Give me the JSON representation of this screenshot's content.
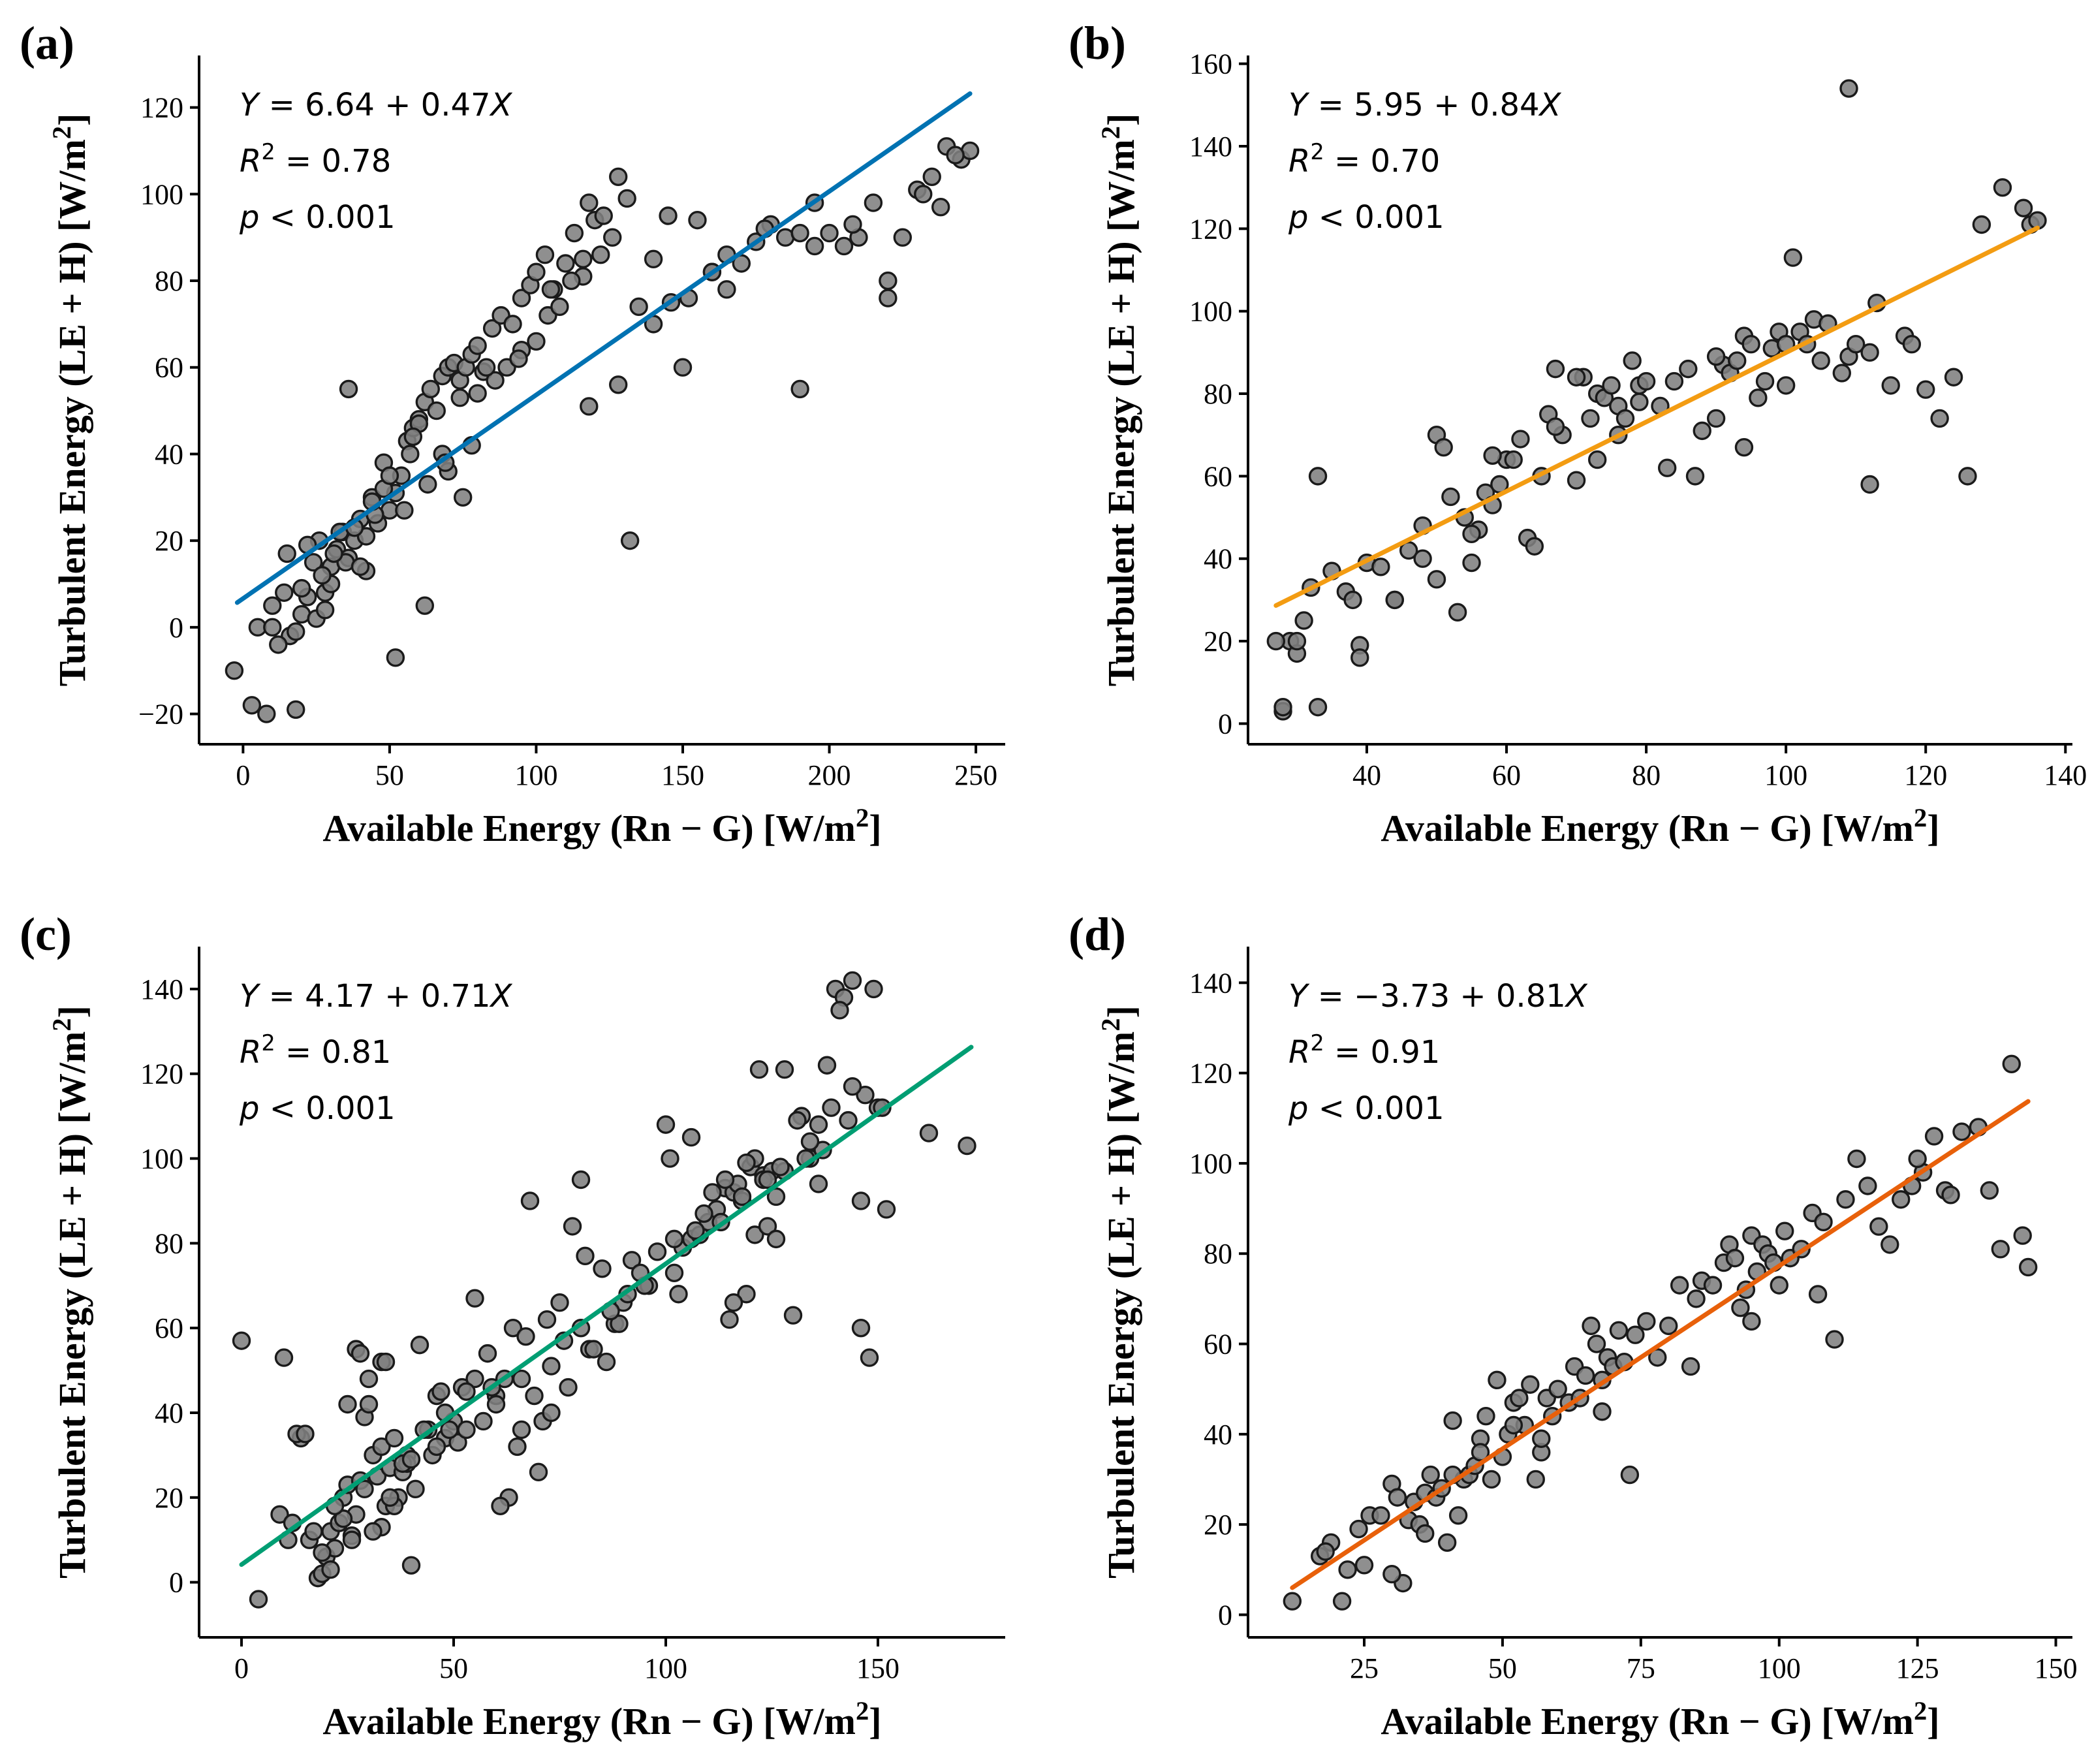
{
  "chart_data": [
    {
      "type": "scatter",
      "panel": "(a)",
      "xlabel": "Available Energy (Rn − G) [W/m2]",
      "ylabel": "Turbulent Energy (LE + H) [W/m2]",
      "xlim": [
        -15,
        260
      ],
      "ylim": [
        -27,
        132
      ],
      "xticks": [
        0,
        50,
        100,
        150,
        200,
        250
      ],
      "yticks": [
        -20,
        0,
        20,
        40,
        60,
        80,
        100,
        120
      ],
      "annotations": [
        "Y = 6.64 + 0.47X",
        "R2 = 0.78",
        "p < 0.001"
      ],
      "fit": {
        "intercept": 6.64,
        "slope": 0.47,
        "x_range": [
          -2,
          248
        ],
        "color": "#0072b2"
      },
      "points": {
        "x": [
          -3,
          3,
          8,
          10,
          14,
          16,
          18,
          20,
          22,
          24,
          26,
          28,
          30,
          32,
          34,
          36,
          38,
          40,
          42,
          44,
          46,
          48,
          50,
          52,
          54,
          56,
          58,
          60,
          62,
          64,
          66,
          68,
          70,
          72,
          74,
          76,
          78,
          80,
          82,
          85,
          88,
          92,
          95,
          98,
          100,
          103,
          106,
          110,
          113,
          116,
          118,
          120,
          123,
          126,
          128,
          131,
          135,
          140,
          145,
          150,
          155,
          160,
          165,
          170,
          175,
          180,
          185,
          190,
          195,
          200,
          205,
          210,
          215,
          220,
          225,
          230,
          235,
          240,
          245,
          248,
          5,
          12,
          18,
          25,
          30,
          35,
          42,
          48,
          55,
          62,
          70,
          78,
          86,
          95,
          104,
          112,
          122,
          132,
          146,
          160,
          190,
          220,
          60,
          75,
          52,
          40,
          36,
          22,
          15,
          10,
          28,
          33,
          45,
          58,
          68,
          80,
          90,
          100,
          108,
          118,
          128,
          140,
          152,
          165,
          178,
          195,
          208,
          232,
          238,
          243,
          20,
          27,
          31,
          38,
          44,
          50,
          57,
          63,
          69,
          74,
          83,
          94,
          105,
          116
        ],
        "y": [
          -10,
          -18,
          -20,
          5,
          8,
          -2,
          -19,
          3,
          7,
          15,
          20,
          8,
          14,
          18,
          22,
          16,
          20,
          25,
          13,
          30,
          24,
          38,
          27,
          31,
          35,
          43,
          46,
          48,
          52,
          55,
          50,
          58,
          60,
          61,
          57,
          60,
          63,
          65,
          59,
          69,
          72,
          70,
          76,
          79,
          82,
          86,
          78,
          84,
          91,
          81,
          98,
          94,
          95,
          90,
          104,
          99,
          74,
          85,
          95,
          60,
          94,
          82,
          78,
          84,
          89,
          93,
          90,
          55,
          98,
          91,
          88,
          90,
          98,
          76,
          90,
          101,
          104,
          111,
          108,
          110,
          0,
          -4,
          -1,
          2,
          10,
          15,
          21,
          32,
          27,
          5,
          36,
          42,
          57,
          64,
          72,
          80,
          86,
          20,
          75,
          82,
          91,
          80,
          47,
          30,
          -7,
          14,
          55,
          19,
          17,
          0,
          4,
          22,
          26,
          44,
          40,
          54,
          60,
          66,
          74,
          51,
          56,
          70,
          76,
          86,
          92,
          88,
          93,
          100,
          97,
          109,
          9,
          12,
          17,
          23,
          29,
          35,
          40,
          33,
          38,
          53,
          60,
          62,
          78,
          85
        ]
      }
    },
    {
      "type": "scatter",
      "panel": "(b)",
      "xlabel": "Available Energy (Rn − G) [W/m2]",
      "ylabel": "Turbulent Energy (LE + H) [W/m2]",
      "xlim": [
        23,
        141
      ],
      "ylim": [
        -5,
        162
      ],
      "xticks": [
        40,
        60,
        80,
        100,
        120,
        140
      ],
      "yticks": [
        0,
        20,
        40,
        60,
        80,
        100,
        120,
        140,
        160
      ],
      "annotations": [
        "Y = 5.95 + 0.84X",
        "R2 = 0.70",
        "p < 0.001"
      ],
      "fit": {
        "intercept": 5.95,
        "slope": 0.84,
        "x_range": [
          27,
          136
        ],
        "color": "#f39c12"
      },
      "points": {
        "x": [
          28,
          29,
          30,
          31,
          32,
          33,
          35,
          37,
          39,
          40,
          42,
          44,
          46,
          48,
          50,
          51,
          52,
          54,
          55,
          56,
          57,
          58,
          59,
          60,
          62,
          63,
          65,
          66,
          67,
          68,
          70,
          71,
          72,
          73,
          74,
          75,
          76,
          77,
          78,
          79,
          80,
          82,
          84,
          86,
          88,
          90,
          91,
          92,
          93,
          94,
          95,
          96,
          98,
          99,
          100,
          101,
          102,
          104,
          105,
          108,
          109,
          110,
          112,
          113,
          115,
          117,
          118,
          120,
          122,
          124,
          126,
          128,
          131,
          134,
          135,
          136,
          27,
          28,
          30,
          33,
          38,
          39,
          44,
          48,
          50,
          53,
          55,
          58,
          61,
          64,
          67,
          70,
          73,
          76,
          79,
          83,
          87,
          90,
          94,
          97,
          100,
          103,
          106,
          109,
          112
        ],
        "y": [
          3,
          20,
          17,
          25,
          33,
          60,
          37,
          32,
          19,
          39,
          38,
          30,
          42,
          40,
          70,
          67,
          55,
          50,
          39,
          47,
          56,
          53,
          58,
          64,
          69,
          45,
          60,
          75,
          86,
          70,
          59,
          84,
          74,
          80,
          79,
          82,
          77,
          74,
          88,
          82,
          83,
          77,
          83,
          86,
          71,
          74,
          87,
          85,
          88,
          94,
          92,
          79,
          91,
          95,
          82,
          113,
          95,
          98,
          88,
          85,
          89,
          92,
          58,
          102,
          82,
          94,
          92,
          81,
          74,
          84,
          60,
          121,
          130,
          125,
          121,
          122,
          20,
          4,
          20,
          4,
          30,
          16,
          30,
          48,
          35,
          27,
          46,
          65,
          64,
          43,
          72,
          84,
          64,
          70,
          78,
          62,
          60,
          89,
          67,
          83,
          92,
          92,
          97,
          154,
          90
        ]
      }
    },
    {
      "type": "scatter",
      "panel": "(c)",
      "xlabel": "Available Energy (Rn − G) [W/m2]",
      "ylabel": "Turbulent Energy (LE + H) [W/m2]",
      "xlim": [
        -10,
        180
      ],
      "ylim": [
        -13,
        150
      ],
      "xticks": [
        0,
        50,
        100,
        150
      ],
      "yticks": [
        0,
        20,
        40,
        60,
        80,
        100,
        120,
        140
      ],
      "annotations": [
        "Y = 4.17 + 0.71X",
        "R2 = 0.81",
        "p < 0.001"
      ],
      "fit": {
        "intercept": 4.17,
        "slope": 0.71,
        "x_range": [
          0,
          172
        ],
        "color": "#009e73"
      },
      "points": {
        "x": [
          0,
          4,
          9,
          12,
          14,
          16,
          18,
          19,
          20,
          21,
          22,
          23,
          24,
          25,
          26,
          27,
          28,
          29,
          30,
          31,
          32,
          33,
          34,
          35,
          36,
          37,
          38,
          39,
          40,
          42,
          44,
          46,
          48,
          50,
          52,
          55,
          58,
          60,
          62,
          64,
          66,
          68,
          70,
          72,
          75,
          78,
          80,
          82,
          85,
          88,
          90,
          92,
          95,
          98,
          100,
          102,
          104,
          106,
          108,
          110,
          112,
          114,
          115,
          116,
          117,
          118,
          119,
          120,
          121,
          122,
          123,
          124,
          125,
          126,
          128,
          130,
          132,
          134,
          136,
          138,
          140,
          142,
          144,
          146,
          148,
          150,
          152,
          162,
          171,
          10,
          13,
          17,
          21,
          24,
          27,
          30,
          33,
          36,
          39,
          43,
          47,
          51,
          55,
          59,
          63,
          67,
          71,
          76,
          81,
          86,
          91,
          96,
          101,
          106,
          111,
          116,
          121,
          126,
          131,
          136,
          141,
          146,
          151,
          11,
          15,
          19,
          25,
          29,
          33,
          38,
          41,
          45,
          49,
          53,
          57,
          61,
          65,
          69,
          73,
          77,
          83,
          89,
          95,
          103,
          107,
          113,
          118,
          123,
          127,
          133,
          137,
          143,
          147,
          22,
          26,
          31,
          35,
          40,
          46,
          53,
          60,
          66,
          73,
          80,
          87,
          94,
          102,
          109,
          114,
          119,
          124,
          128,
          134,
          139,
          144,
          149,
          28,
          34,
          48
        ],
        "y": [
          57,
          -4,
          16,
          14,
          34,
          10,
          1,
          2,
          6,
          12,
          8,
          14,
          20,
          23,
          11,
          16,
          24,
          39,
          42,
          30,
          25,
          32,
          18,
          27,
          34,
          20,
          26,
          30,
          4,
          56,
          36,
          44,
          34,
          38,
          46,
          67,
          54,
          44,
          48,
          60,
          36,
          90,
          26,
          62,
          66,
          84,
          95,
          55,
          74,
          61,
          66,
          76,
          70,
          78,
          108,
          73,
          79,
          81,
          82,
          85,
          88,
          93,
          62,
          92,
          94,
          90,
          68,
          98,
          82,
          121,
          96,
          84,
          97,
          81,
          97,
          63,
          110,
          100,
          108,
          122,
          140,
          138,
          142,
          60,
          53,
          112,
          88,
          106,
          103,
          53,
          35,
          12,
          3,
          15,
          55,
          48,
          13,
          18,
          28,
          36,
          45,
          33,
          48,
          46,
          20,
          58,
          38,
          57,
          77,
          52,
          68,
          70,
          100,
          105,
          92,
          66,
          100,
          91,
          109,
          94,
          135,
          90,
          112,
          10,
          35,
          7,
          42,
          22,
          52,
          28,
          22,
          30,
          36,
          45,
          38,
          18,
          32,
          44,
          40,
          46,
          55,
          61,
          70,
          68,
          83,
          85,
          91,
          95,
          98,
          100,
          102,
          109,
          115,
          18,
          10,
          12,
          20,
          29,
          32,
          36,
          42,
          48,
          51,
          60,
          64,
          73,
          81,
          87,
          95,
          99,
          95,
          121,
          104,
          112,
          117,
          140,
          54,
          52,
          40
        ]
      }
    },
    {
      "type": "scatter",
      "panel": "(d)",
      "xlabel": "Available Energy (Rn − G) [W/m2]",
      "ylabel": "Turbulent Energy (LE + H) [W/m2]",
      "xlim": [
        4,
        153
      ],
      "ylim": [
        -5,
        148
      ],
      "xticks": [
        25,
        50,
        75,
        100,
        125,
        150
      ],
      "yticks": [
        0,
        20,
        40,
        60,
        80,
        100,
        120,
        140
      ],
      "annotations": [
        "Y = −3.73 + 0.81X",
        "R2 = 0.91",
        "p < 0.001"
      ],
      "fit": {
        "intercept": -3.73,
        "slope": 0.81,
        "x_range": [
          12,
          145
        ],
        "color": "#e8600a"
      },
      "points": {
        "x": [
          12,
          17,
          19,
          21,
          22,
          24,
          26,
          28,
          30,
          31,
          32,
          33,
          34,
          35,
          36,
          37,
          38,
          39,
          40,
          41,
          42,
          43,
          44,
          45,
          46,
          47,
          48,
          49,
          50,
          51,
          52,
          53,
          54,
          55,
          56,
          57,
          58,
          59,
          60,
          62,
          63,
          65,
          66,
          67,
          68,
          69,
          70,
          71,
          72,
          74,
          76,
          78,
          80,
          82,
          84,
          86,
          88,
          90,
          91,
          92,
          93,
          94,
          95,
          96,
          97,
          98,
          99,
          100,
          101,
          102,
          104,
          106,
          108,
          110,
          112,
          114,
          116,
          118,
          120,
          122,
          124,
          126,
          128,
          130,
          133,
          136,
          138,
          140,
          142,
          144,
          145,
          18,
          25,
          30,
          36,
          41,
          46,
          52,
          57,
          64,
          68,
          73,
          85,
          95,
          107,
          125,
          131
        ],
        "y": [
          3,
          13,
          16,
          3,
          10,
          19,
          22,
          22,
          29,
          26,
          7,
          21,
          25,
          20,
          27,
          31,
          26,
          28,
          16,
          43,
          22,
          30,
          31,
          33,
          39,
          44,
          30,
          52,
          35,
          40,
          47,
          48,
          42,
          51,
          30,
          36,
          48,
          44,
          50,
          47,
          55,
          53,
          64,
          60,
          45,
          57,
          55,
          63,
          56,
          62,
          65,
          57,
          64,
          73,
          55,
          74,
          73,
          78,
          82,
          79,
          68,
          72,
          84,
          76,
          82,
          80,
          78,
          73,
          85,
          79,
          81,
          89,
          87,
          61,
          92,
          101,
          95,
          86,
          82,
          92,
          95,
          98,
          106,
          94,
          107,
          108,
          94,
          81,
          122,
          84,
          77,
          14,
          11,
          9,
          18,
          31,
          36,
          42,
          39,
          48,
          52,
          31,
          70,
          65,
          71,
          101,
          93
        ]
      }
    }
  ]
}
